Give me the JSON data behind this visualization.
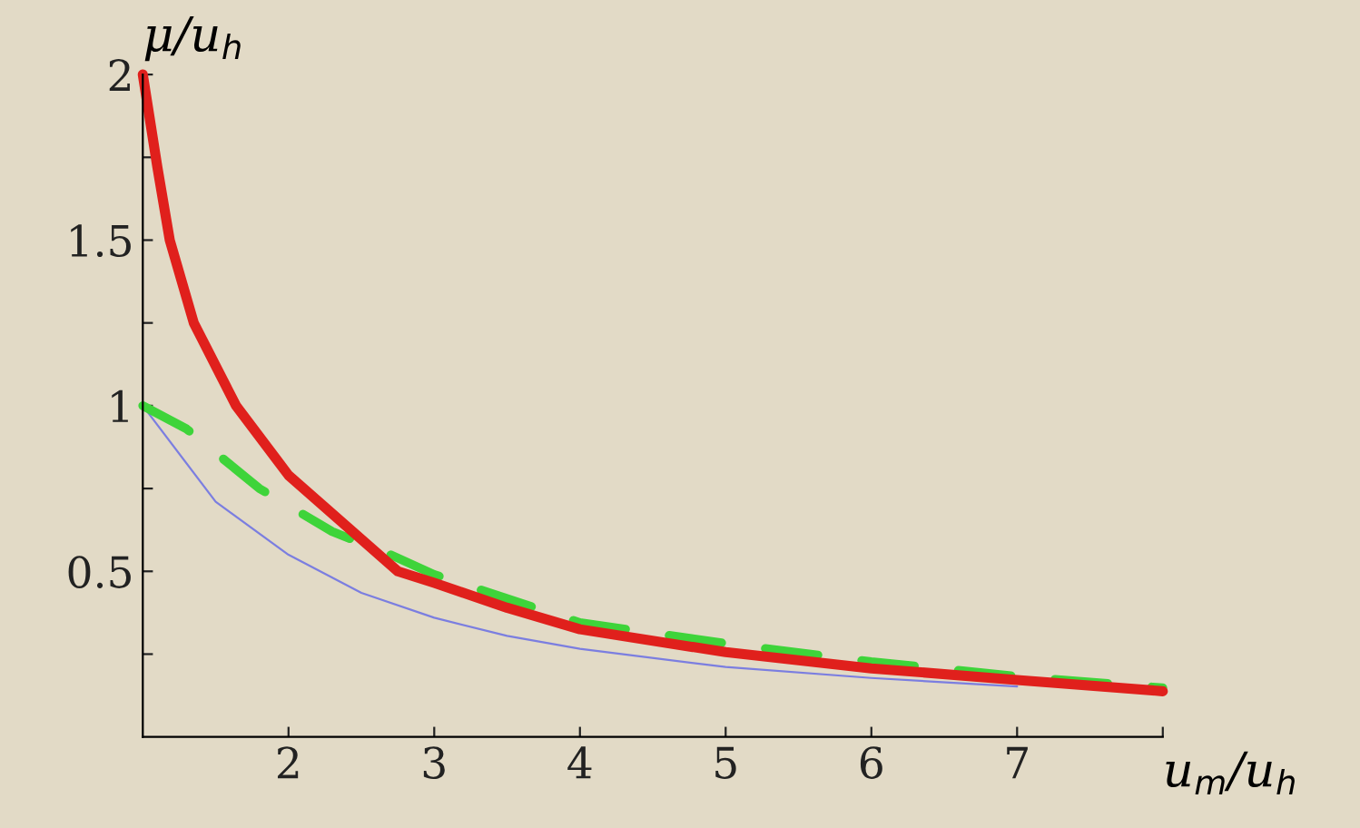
{
  "chart_data": {
    "type": "line",
    "xlabel": "u$_{m}$/u$_{h}$",
    "ylabel": "μ/u$_{h}$",
    "xlim": [
      1,
      8
    ],
    "ylim": [
      0,
      2
    ],
    "xticks": [
      2,
      3,
      4,
      5,
      6,
      7,
      {
        "value": 8,
        "label": null
      }
    ],
    "yticks": [
      {
        "value": 0.25,
        "label": null
      },
      0.5,
      {
        "value": 0.75,
        "label": null
      },
      1,
      {
        "value": 1.25,
        "label": null
      },
      1.5,
      {
        "value": 1.75,
        "label": null
      },
      2
    ],
    "grid": false,
    "legend": false,
    "series": [
      {
        "color": "#7b7ee0",
        "line_style": "solid",
        "x": [
          1,
          1.5,
          2,
          2.5,
          3,
          3.5,
          4,
          5,
          6,
          7
        ],
        "values": [
          1.0,
          0.71,
          0.55,
          0.435,
          0.36,
          0.305,
          0.266,
          0.211,
          0.178,
          0.152
        ]
      },
      {
        "color": "#3ed43a",
        "line_style": "dashed",
        "x": [
          1,
          1.3,
          1.8,
          2.3,
          2.7,
          3,
          4,
          5,
          6,
          7,
          8
        ],
        "values": [
          1.0,
          0.93,
          0.75,
          0.62,
          0.55,
          0.49,
          0.345,
          0.282,
          0.227,
          0.183,
          0.148
        ]
      },
      {
        "color": "#e0201c",
        "line_style": "solid",
        "x": [
          1,
          1.1,
          1.185,
          1.35,
          1.64,
          2,
          2.75,
          3,
          3.5,
          4,
          5,
          6,
          7,
          8
        ],
        "values": [
          2.0,
          1.72,
          1.5,
          1.25,
          1.0,
          0.79,
          0.5,
          0.465,
          0.39,
          0.325,
          0.256,
          0.207,
          0.172,
          0.138
        ]
      }
    ]
  }
}
